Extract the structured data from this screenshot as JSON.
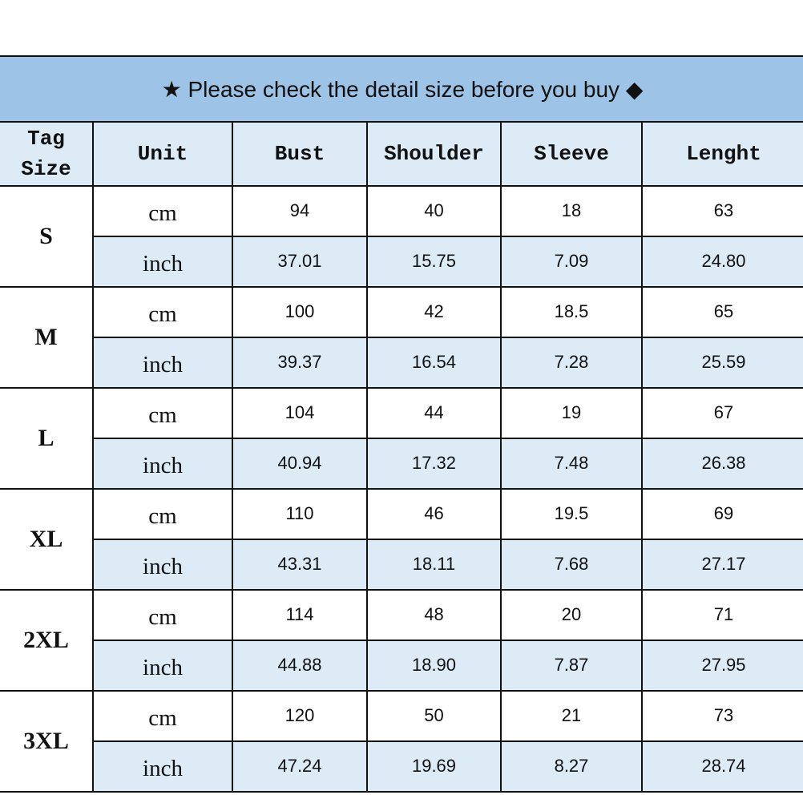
{
  "title": "★ Please check the detail size before you buy ◆",
  "headers": [
    "Tag Size",
    "Unit",
    "Bust",
    "Shoulder",
    "Sleeve",
    "Lenght"
  ],
  "colors": {
    "title_bg": "#9dc3e6",
    "header_bg": "#ddebf7",
    "inch_row_bg": "#ddebf7"
  },
  "rows": [
    {
      "size": "S",
      "cm": {
        "unit": "cm",
        "values": [
          "94",
          "40",
          "18",
          "63"
        ]
      },
      "inch": {
        "unit": "inch",
        "values": [
          "37.01",
          "15.75",
          "7.09",
          "24.80"
        ]
      }
    },
    {
      "size": "M",
      "cm": {
        "unit": "cm",
        "values": [
          "100",
          "42",
          "18.5",
          "65"
        ]
      },
      "inch": {
        "unit": "inch",
        "values": [
          "39.37",
          "16.54",
          "7.28",
          "25.59"
        ]
      }
    },
    {
      "size": "L",
      "cm": {
        "unit": "cm",
        "values": [
          "104",
          "44",
          "19",
          "67"
        ]
      },
      "inch": {
        "unit": "inch",
        "values": [
          "40.94",
          "17.32",
          "7.48",
          "26.38"
        ]
      }
    },
    {
      "size": "XL",
      "cm": {
        "unit": "cm",
        "values": [
          "110",
          "46",
          "19.5",
          "69"
        ]
      },
      "inch": {
        "unit": "inch",
        "values": [
          "43.31",
          "18.11",
          "7.68",
          "27.17"
        ]
      }
    },
    {
      "size": "2XL",
      "cm": {
        "unit": "cm",
        "values": [
          "114",
          "48",
          "20",
          "71"
        ]
      },
      "inch": {
        "unit": "inch",
        "values": [
          "44.88",
          "18.90",
          "7.87",
          "27.95"
        ]
      }
    },
    {
      "size": "3XL",
      "cm": {
        "unit": "cm",
        "values": [
          "120",
          "50",
          "21",
          "73"
        ]
      },
      "inch": {
        "unit": "inch",
        "values": [
          "47.24",
          "19.69",
          "8.27",
          "28.74"
        ]
      }
    }
  ]
}
